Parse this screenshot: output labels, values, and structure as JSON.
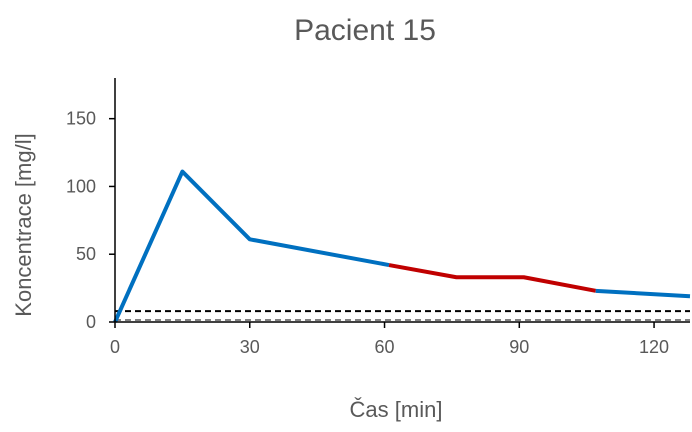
{
  "chart_data": {
    "type": "line",
    "title": "Pacient 15",
    "xlabel": "Čas [min]",
    "ylabel": "Koncentrace [mg/l]",
    "xlim": [
      0,
      128
    ],
    "ylim": [
      0,
      180
    ],
    "x_ticks": [
      0,
      30,
      60,
      90,
      120
    ],
    "y_ticks": [
      0,
      50,
      100,
      150
    ],
    "grid": false,
    "legend": "none",
    "series": [
      {
        "color": "#0070C0",
        "x": [
          0,
          15,
          30,
          61
        ],
        "y": [
          0,
          111,
          61,
          42
        ]
      },
      {
        "color": "#C00000",
        "x": [
          61,
          76,
          91,
          107
        ],
        "y": [
          42,
          33,
          33,
          23
        ]
      },
      {
        "color": "#0070C0",
        "x": [
          107,
          128
        ],
        "y": [
          23,
          19
        ]
      }
    ],
    "reference_lines": [
      {
        "y": 8,
        "color": "#000000",
        "style": "dashed"
      },
      {
        "y": 1.5,
        "color": "#808080",
        "style": "dashed"
      }
    ]
  }
}
